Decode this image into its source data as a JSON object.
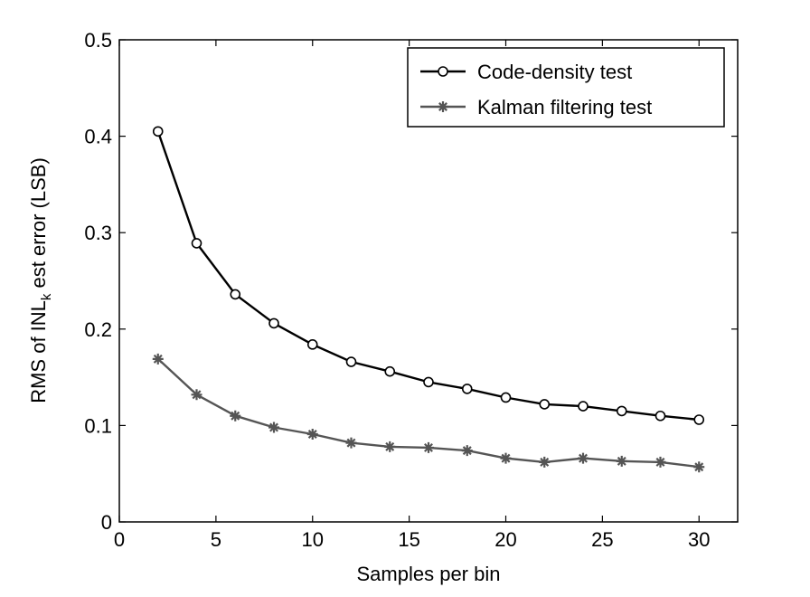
{
  "chart_data": {
    "type": "line",
    "title": "",
    "xlabel": "Samples per bin",
    "ylabel": {
      "prefix": "RMS of INL",
      "subscript": "k",
      "suffix": " est error (LSB)"
    },
    "xlim": [
      0,
      32
    ],
    "ylim": [
      0,
      0.5
    ],
    "xticks": [
      0,
      5,
      10,
      15,
      20,
      25,
      30
    ],
    "yticks": [
      0,
      0.1,
      0.2,
      0.3,
      0.4,
      0.5
    ],
    "xtick_labels": [
      "0",
      "5",
      "10",
      "15",
      "20",
      "25",
      "30"
    ],
    "ytick_labels": [
      "0",
      "0.1",
      "0.2",
      "0.3",
      "0.4",
      "0.5"
    ],
    "grid": false,
    "legend_position": "top-right",
    "x": [
      2,
      4,
      6,
      8,
      10,
      12,
      14,
      16,
      18,
      20,
      22,
      24,
      26,
      28,
      30
    ],
    "series": [
      {
        "name": "Code-density test",
        "marker": "circle",
        "color": "#000000",
        "values": [
          0.405,
          0.289,
          0.236,
          0.206,
          0.184,
          0.166,
          0.156,
          0.145,
          0.138,
          0.129,
          0.122,
          0.12,
          0.115,
          0.11,
          0.106
        ]
      },
      {
        "name": "Kalman filtering test",
        "marker": "star",
        "color": "#555555",
        "values": [
          0.169,
          0.132,
          0.11,
          0.098,
          0.091,
          0.082,
          0.078,
          0.077,
          0.074,
          0.066,
          0.062,
          0.066,
          0.063,
          0.062,
          0.057
        ]
      }
    ]
  }
}
